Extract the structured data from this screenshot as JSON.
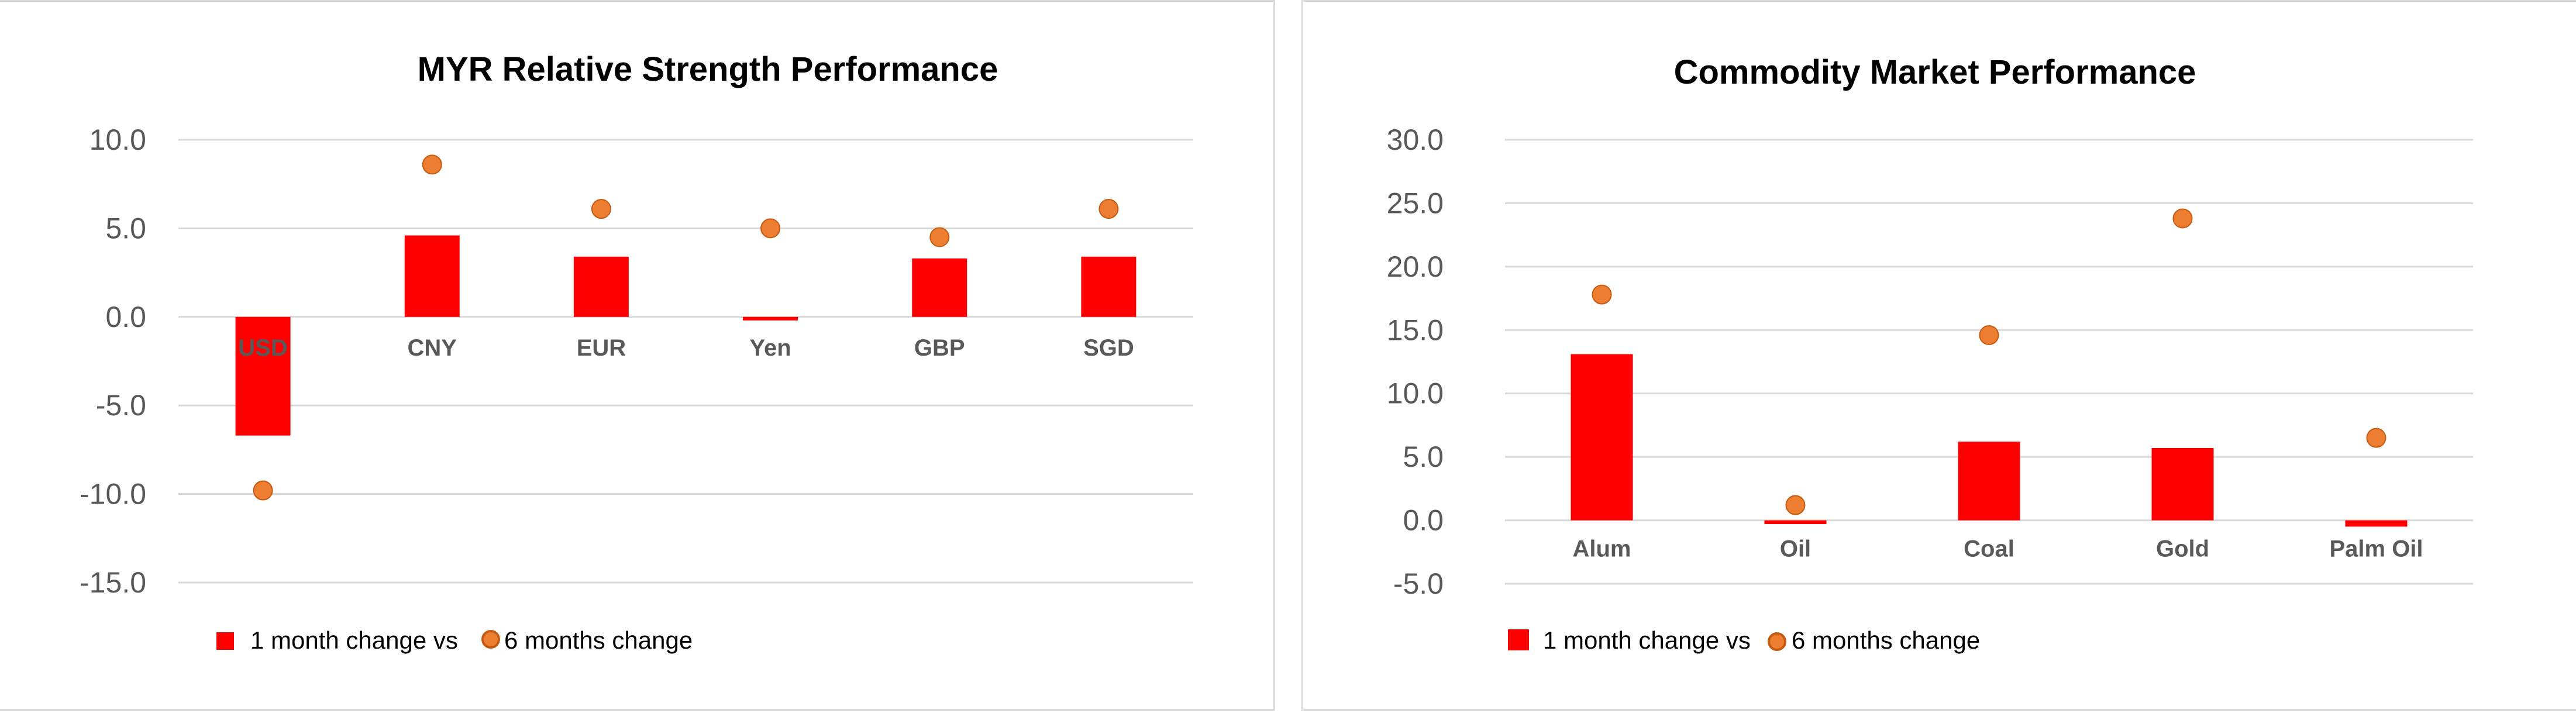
{
  "colors": {
    "bar": "#ff0000",
    "marker": "#ed7d31",
    "marker_stroke": "#c55a11",
    "grid": "#d9d9d9"
  },
  "chart_data": [
    {
      "type": "bar",
      "title": "MYR Relative Strength Performance",
      "categories": [
        "USD",
        "CNY",
        "EUR",
        "Yen",
        "GBP",
        "SGD"
      ],
      "series": [
        {
          "name": "1 month change vs",
          "type": "bar",
          "values": [
            -6.7,
            4.6,
            3.4,
            -0.2,
            3.3,
            3.4
          ]
        },
        {
          "name": "6 months change",
          "type": "scatter",
          "values": [
            -9.8,
            8.6,
            6.1,
            5.0,
            4.5,
            6.1
          ]
        }
      ],
      "ylim": [
        -15,
        10
      ],
      "yticks": [
        10,
        5,
        0,
        -5,
        -10,
        -15
      ],
      "ytick_labels": [
        "10.0",
        "5.0",
        "0.0",
        "-5.0",
        "-10.0",
        "-15.0"
      ],
      "grid": true,
      "legend": "bottom-left"
    },
    {
      "type": "bar",
      "title": "Commodity Market Performance",
      "categories": [
        "Alum",
        "Oil",
        "Coal",
        "Gold",
        "Palm Oil"
      ],
      "series": [
        {
          "name": "1 month change vs",
          "type": "bar",
          "values": [
            13.1,
            -0.3,
            6.2,
            5.7,
            -0.5
          ]
        },
        {
          "name": "6 months change",
          "type": "scatter",
          "values": [
            17.8,
            1.2,
            14.6,
            23.8,
            6.5
          ]
        }
      ],
      "ylim": [
        -5,
        30
      ],
      "yticks": [
        30,
        25,
        20,
        15,
        10,
        5,
        0,
        -5
      ],
      "ytick_labels": [
        "30.0",
        "25.0",
        "20.0",
        "15.0",
        "10.0",
        "5.0",
        "0.0",
        "-5.0"
      ],
      "grid": true,
      "legend": "bottom-left"
    }
  ]
}
